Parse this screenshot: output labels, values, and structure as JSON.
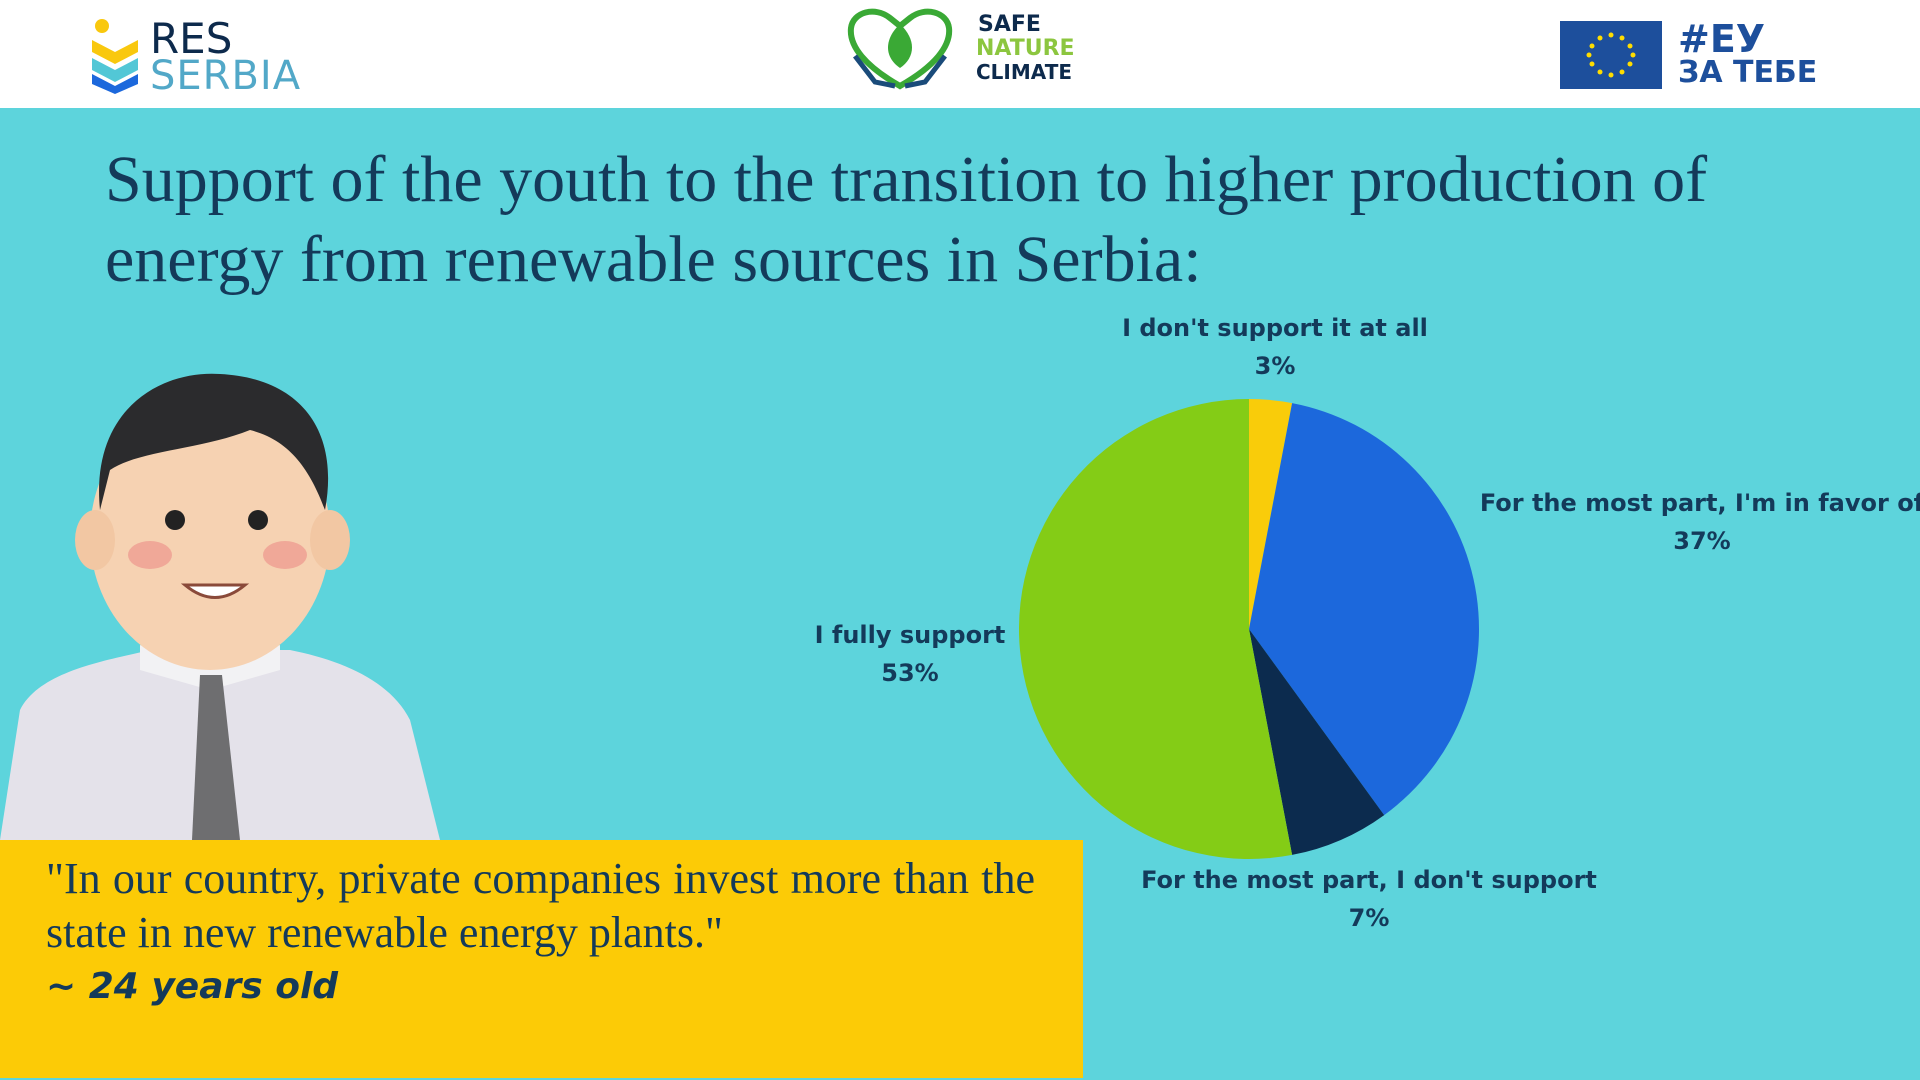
{
  "header": {
    "logo_left": [
      "RES",
      "SERBIA"
    ],
    "logo_center": [
      "SAFE",
      "NATURE",
      "CLIMATE"
    ],
    "logo_right": [
      "#ЕУ",
      "ЗА ТЕБЕ"
    ]
  },
  "chart_data": {
    "type": "pie",
    "title": "Support of the youth to the transition to higher production of energy from renewable sources in Serbia:",
    "categories": [
      "I don't support it at all",
      "For the most part, I'm in favor of",
      "For the most part, I don't support",
      "I fully support"
    ],
    "values": [
      3,
      37,
      7,
      53
    ],
    "value_labels": [
      "3%",
      "37%",
      "7%",
      "53%"
    ],
    "colors": [
      "#f9cc0a",
      "#1c68dc",
      "#0c2b4e",
      "#84cc16"
    ]
  },
  "quote": {
    "text": "\"In our country, private companies invest more than the state in new renewable energy plants.\"",
    "author": "~ 24 years old"
  }
}
